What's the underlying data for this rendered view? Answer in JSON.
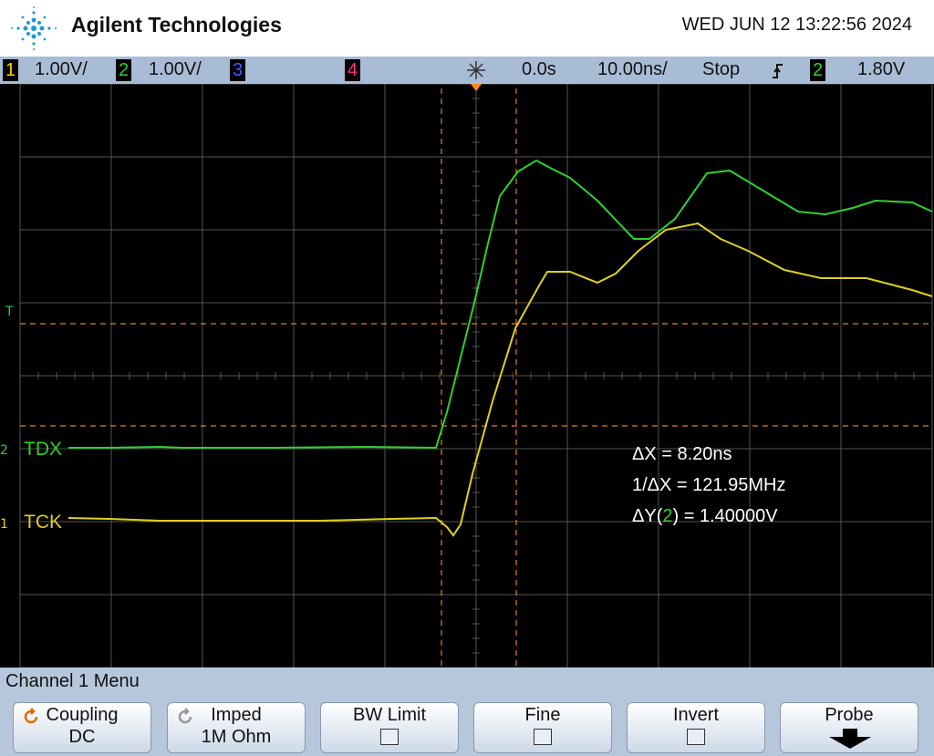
{
  "header": {
    "brand": "Agilent Technologies",
    "datetime": "WED JUN 12 13:22:56 2024"
  },
  "status_bar": {
    "ch1": "1",
    "ch1_scale": "1.00V/",
    "ch2": "2",
    "ch2_scale": "1.00V/",
    "ch3": "3",
    "ch4": "4",
    "delay": "0.0s",
    "timebase": "10.00ns/",
    "run_state": "Stop",
    "trigger_source": "2",
    "trigger_level": "1.80V"
  },
  "screen": {
    "trigger_marker": "T",
    "channels": [
      {
        "number": "2",
        "label": "TDX"
      },
      {
        "number": "1",
        "label": "TCK"
      }
    ],
    "measurements": {
      "delta_x": "ΔX = 8.20ns",
      "inv_delta_x": "1/ΔX = 121.95MHz",
      "delta_y_prefix": "ΔY(",
      "delta_y_channel": "2",
      "delta_y_suffix": ") = 1.40000V"
    }
  },
  "menu": {
    "title": "Channel 1  Menu",
    "softkeys": [
      {
        "label": "Coupling",
        "value": "DC"
      },
      {
        "label": "Imped",
        "value": "1M Ohm"
      },
      {
        "label": "BW Limit"
      },
      {
        "label": "Fine"
      },
      {
        "label": "Invert"
      },
      {
        "label": "Probe"
      }
    ]
  }
}
